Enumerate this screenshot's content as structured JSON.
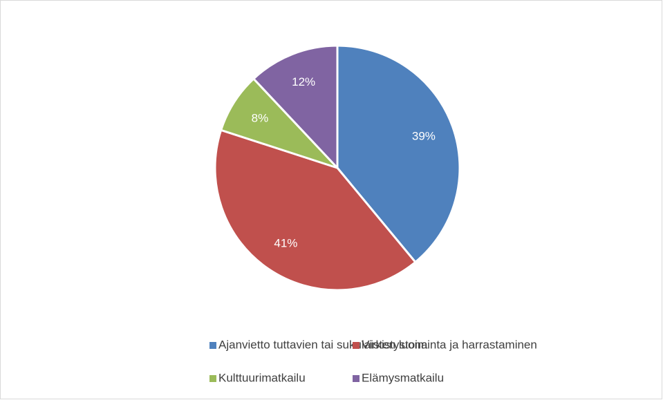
{
  "chart_data": {
    "type": "pie",
    "categories": [
      "Ajanvietto tuttavien tai sukulaisten luona",
      "Virkistystoiminta ja harrastaminen",
      "Kulttuurimatkailu",
      "Elämysmatkailu"
    ],
    "values": [
      39,
      41,
      8,
      12
    ],
    "value_labels": [
      "39%",
      "41%",
      "8%",
      "12%"
    ],
    "colors": [
      "#4f81bd",
      "#c0504d",
      "#9bbb59",
      "#8064a2"
    ],
    "legend": "bottom"
  }
}
